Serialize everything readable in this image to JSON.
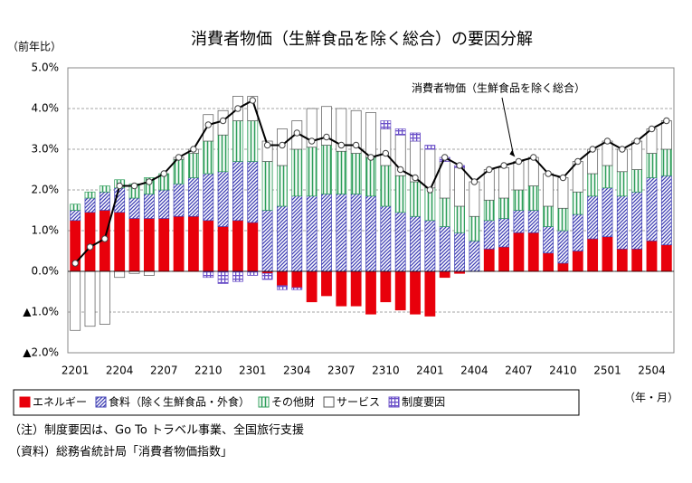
{
  "chart_data": {
    "type": "bar",
    "title": "消費者物価（生鮮食品を除く総合）の要因分解",
    "y_label": "（前年比）",
    "x_label": "（年・月）",
    "notes": [
      "（注）制度要因は、Go To トラベル事業、全国旅行支援",
      "（資料）総務省統計局「消費者物価指数」"
    ],
    "categories": [
      "2201",
      null,
      null,
      "2204",
      null,
      null,
      "2207",
      null,
      null,
      "2210",
      null,
      null,
      "2301",
      null,
      null,
      "2304",
      null,
      null,
      "2307",
      null,
      null,
      "2310",
      null,
      null,
      "2401",
      null,
      null,
      "2404",
      null,
      null,
      "2407",
      null,
      null,
      "2410",
      null,
      null,
      "2501",
      null,
      null,
      "2504",
      null
    ],
    "ylim": [
      -2,
      5
    ],
    "yticks": [
      {
        "value": 5,
        "label": "5.0%"
      },
      {
        "value": 4,
        "label": "4.0%"
      },
      {
        "value": 3,
        "label": "3.0%"
      },
      {
        "value": 2,
        "label": "2.0%"
      },
      {
        "value": 1,
        "label": "1.0%"
      },
      {
        "value": 0,
        "label": "0.0%"
      },
      {
        "value": -1,
        "label": "▲1.0%"
      },
      {
        "value": -2,
        "label": "▲2.0%"
      }
    ],
    "grid": true,
    "stacked": true,
    "series": [
      {
        "name": "エネルギー",
        "color": "#e8000b",
        "pattern": "solid",
        "values": [
          1.25,
          1.45,
          1.5,
          1.45,
          1.3,
          1.3,
          1.3,
          1.35,
          1.35,
          1.25,
          1.1,
          1.25,
          1.2,
          -0.05,
          -0.35,
          -0.4,
          -0.75,
          -0.6,
          -0.85,
          -0.85,
          -1.05,
          -0.75,
          -0.95,
          -1.05,
          -1.1,
          -0.15,
          -0.05,
          0,
          0.55,
          0.6,
          0.95,
          0.95,
          0.45,
          0.2,
          0.5,
          0.8,
          0.85,
          0.55,
          0.55,
          0.75,
          0.65
        ]
      },
      {
        "name": "食料（除く生鮮食品・外食）",
        "color": "#3f3fb4",
        "pattern": "diagonal",
        "values": [
          0.25,
          0.35,
          0.45,
          0.6,
          0.5,
          0.6,
          0.7,
          0.8,
          0.95,
          1.15,
          1.35,
          1.45,
          1.5,
          1.5,
          1.6,
          1.85,
          1.85,
          1.9,
          1.9,
          1.9,
          1.85,
          1.6,
          1.45,
          1.35,
          1.25,
          1.1,
          0.95,
          0.75,
          0.7,
          0.7,
          0.55,
          0.55,
          0.65,
          0.8,
          0.9,
          1.05,
          1.2,
          1.3,
          1.4,
          1.55,
          1.7
        ]
      },
      {
        "name": "その他財",
        "color": "#2e9e5a",
        "pattern": "vertical",
        "values": [
          0.15,
          0.15,
          0.15,
          0.2,
          0.35,
          0.4,
          0.4,
          0.6,
          0.6,
          0.8,
          0.9,
          1.0,
          1.0,
          1.2,
          1.0,
          1.15,
          1.2,
          1.2,
          1.05,
          1.0,
          0.95,
          1.0,
          0.9,
          0.85,
          0.8,
          0.7,
          0.65,
          0.6,
          0.5,
          0.5,
          0.5,
          0.6,
          0.5,
          0.55,
          0.55,
          0.55,
          0.55,
          0.6,
          0.55,
          0.6,
          0.65
        ]
      },
      {
        "name": "サービス",
        "color": "#ffffff",
        "pattern": "solid",
        "values": [
          -1.45,
          -1.35,
          -1.3,
          -0.15,
          -0.05,
          -0.1,
          0,
          0.05,
          0.1,
          0.65,
          0.6,
          0.6,
          0.6,
          0.5,
          0.9,
          0.7,
          0.95,
          0.95,
          1.05,
          1.05,
          1.1,
          0.9,
          1.0,
          1.0,
          0.95,
          0.9,
          0.95,
          0.85,
          0.75,
          0.75,
          0.7,
          0.7,
          0.8,
          0.75,
          0.75,
          0.6,
          0.6,
          0.55,
          0.7,
          0.6,
          0.7
        ]
      },
      {
        "name": "制度要因",
        "color": "#6a4fc8",
        "pattern": "grid",
        "values": [
          0,
          0,
          0,
          0,
          0,
          0,
          0,
          0,
          0,
          -0.15,
          -0.3,
          -0.25,
          -0.1,
          -0.15,
          -0.1,
          -0.05,
          0,
          0,
          0,
          0,
          0,
          0.2,
          0.15,
          0.2,
          0.1,
          0.1,
          0.05,
          0,
          0,
          0,
          0,
          0,
          0,
          0,
          0,
          0,
          0,
          0,
          0,
          0,
          0
        ]
      },
      {
        "name": "消費者物価（生鮮食品を除く総合）",
        "type": "line",
        "color": "#000000",
        "values": [
          0.2,
          0.6,
          0.8,
          2.1,
          2.1,
          2.2,
          2.4,
          2.8,
          3.0,
          3.6,
          3.7,
          4.0,
          4.2,
          3.1,
          3.1,
          3.4,
          3.2,
          3.3,
          3.1,
          3.1,
          2.8,
          2.9,
          2.5,
          2.3,
          2.0,
          2.8,
          2.6,
          2.2,
          2.5,
          2.6,
          2.7,
          2.8,
          2.4,
          2.3,
          2.7,
          3.0,
          3.2,
          3.0,
          3.2,
          3.5,
          3.7
        ]
      }
    ]
  }
}
